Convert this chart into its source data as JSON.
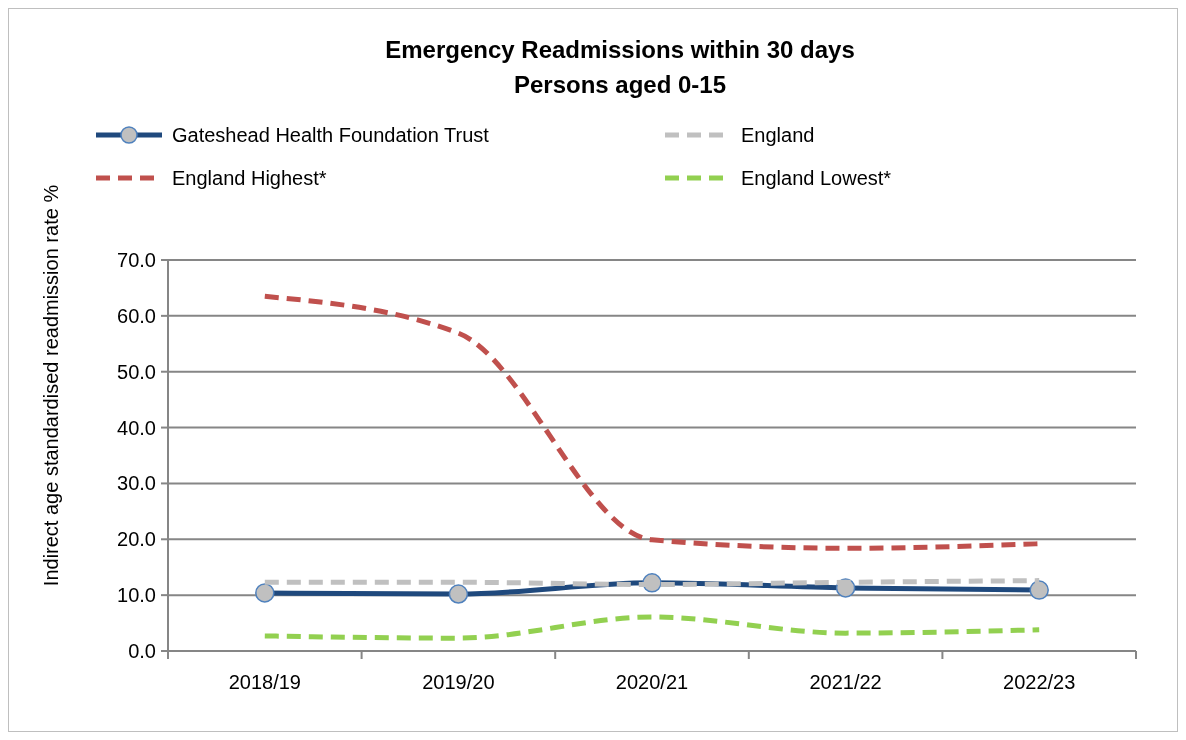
{
  "chart_data": {
    "type": "line",
    "title": "Emergency Readmissions within 30 days\nPersons aged 0-15",
    "ylabel": "Indirect age standardised readmission rate  %",
    "categories": [
      "2018/19",
      "2019/20",
      "2020/21",
      "2021/22",
      "2022/23"
    ],
    "ylim": [
      0,
      70
    ],
    "yticks": [
      {
        "value": 0,
        "label": "0.0"
      },
      {
        "value": 10,
        "label": "10.0"
      },
      {
        "value": 20,
        "label": "20.0"
      },
      {
        "value": 30,
        "label": "30.0"
      },
      {
        "value": 40,
        "label": "40.0"
      },
      {
        "value": 50,
        "label": "50.0"
      },
      {
        "value": 60,
        "label": "60.0"
      },
      {
        "value": 70,
        "label": "70.0"
      }
    ],
    "grid": "y",
    "legend": "top",
    "series": [
      {
        "name": "Gateshead Health Foundation Trust",
        "color": "#1f497d",
        "values": [
          10.4,
          10.2,
          12.2,
          11.3,
          10.9
        ],
        "marker": "circle",
        "line_style": "solid"
      },
      {
        "name": "England",
        "color": "#c0c0c0",
        "values": [
          12.3,
          12.3,
          11.9,
          12.3,
          12.6
        ],
        "marker": "none",
        "line_style": "dashed"
      },
      {
        "name": "England Highest*",
        "color": "#c0504d",
        "values": [
          63.5,
          56.9,
          19.9,
          18.4,
          19.2
        ],
        "marker": "none",
        "line_style": "dashed"
      },
      {
        "name": "England Lowest*",
        "color": "#92d050",
        "values": [
          2.7,
          2.3,
          6.1,
          3.2,
          3.8
        ],
        "marker": "none",
        "line_style": "dashed"
      }
    ]
  }
}
